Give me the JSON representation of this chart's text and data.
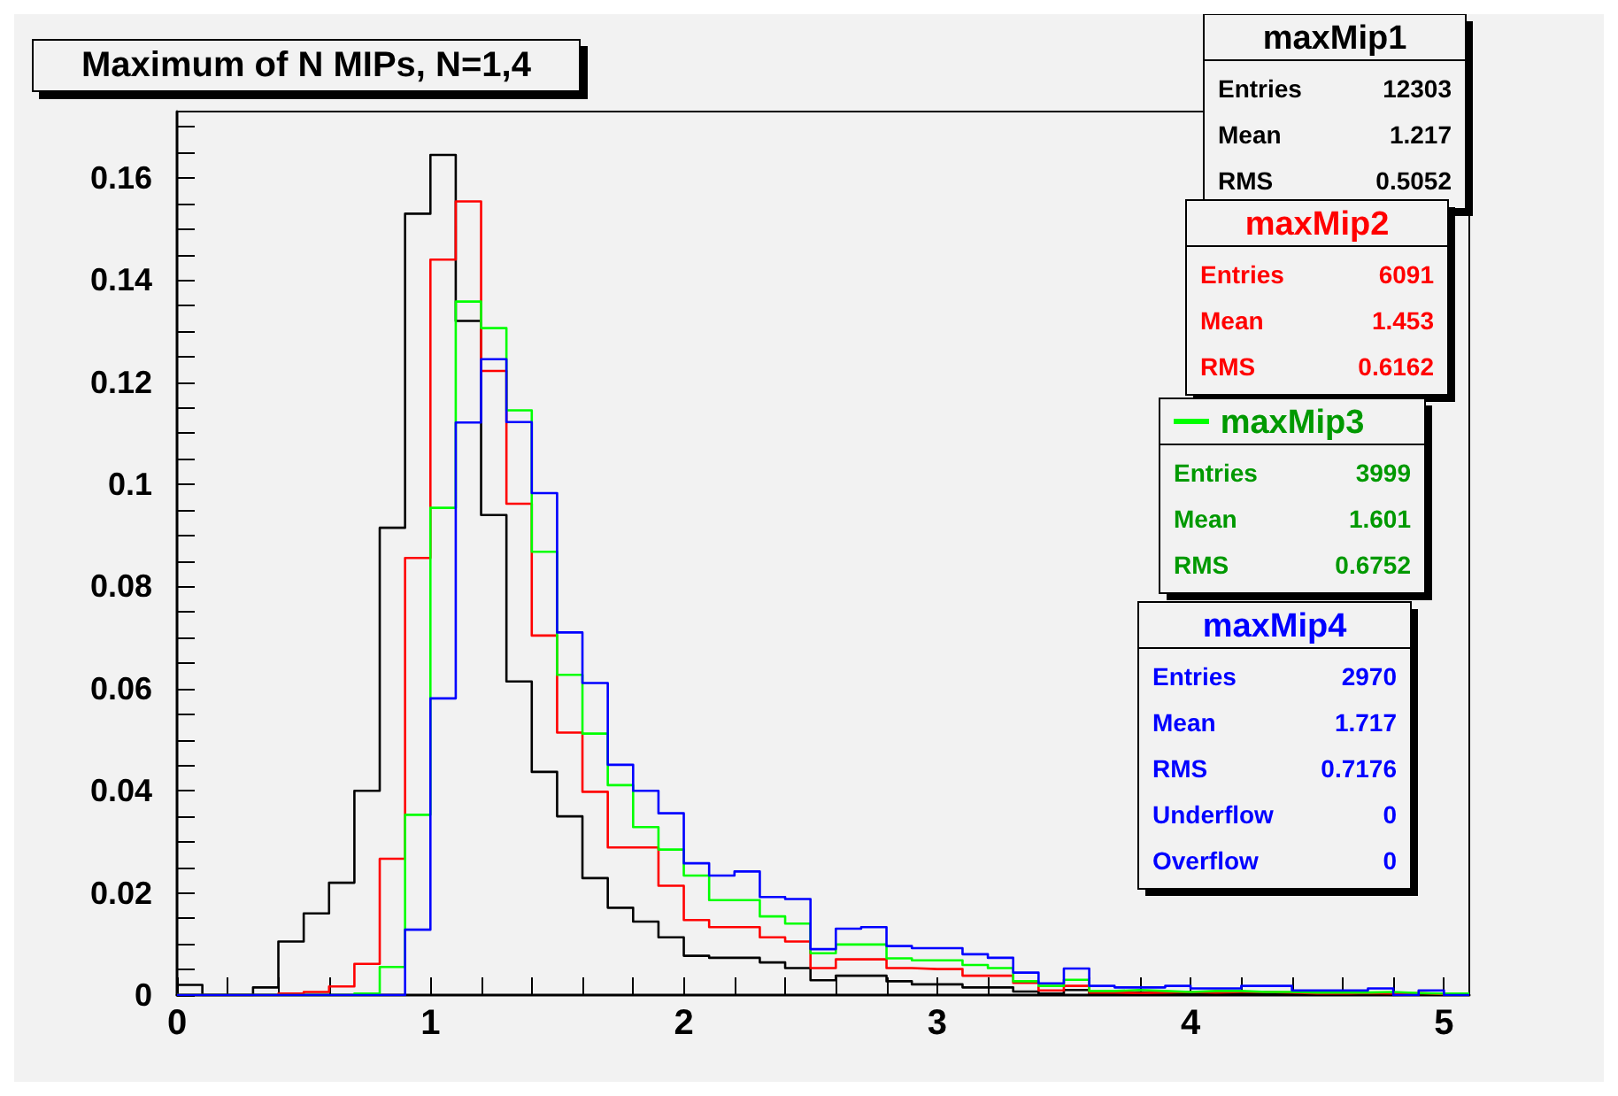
{
  "chart_data": {
    "type": "histogram",
    "title": "Maximum of N MIPs, N=1,4",
    "bins": [
      0,
      0.1,
      0.2,
      0.3,
      0.4,
      0.5,
      0.6,
      0.7,
      0.8,
      0.9,
      1,
      1.1,
      1.2,
      1.3,
      1.4,
      1.5,
      1.6,
      1.7,
      1.8,
      1.9,
      2,
      2.1,
      2.2,
      2.3,
      2.4,
      2.5,
      2.6,
      2.7,
      2.8,
      2.9,
      3,
      3.1,
      3.2,
      3.3,
      3.4,
      3.5,
      3.6,
      3.7,
      3.8,
      3.9,
      4,
      4.1,
      4.2,
      4.3,
      4.4,
      4.5,
      4.6,
      4.7,
      4.8,
      4.9,
      5,
      5.1
    ],
    "series": [
      {
        "name": "maxMip1",
        "color": "#000000",
        "values": [
          0.002,
          0,
          0,
          0.0015,
          0.0105,
          0.016,
          0.022,
          0.04,
          0.0915,
          0.153,
          0.1645,
          0.132,
          0.094,
          0.0614,
          0.0437,
          0.035,
          0.0229,
          0.0171,
          0.0144,
          0.0113,
          0.0077,
          0.0073,
          0.0073,
          0.0064,
          0.0053,
          0.0029,
          0.0038,
          0.0038,
          0.0027,
          0.0021,
          0.0021,
          0.0015,
          0.0015,
          0.0007,
          0.0003,
          0.001,
          0.0003,
          0.0005,
          0.0003,
          0.0003,
          0.0002,
          0.0003,
          0.0002,
          0.0002,
          0.0002,
          0.0001,
          0.0002,
          0,
          0.0001,
          0,
          0
        ]
      },
      {
        "name": "maxMip2",
        "color": "#ff0000",
        "values": [
          0,
          0,
          0,
          0,
          0.0003,
          0.0006,
          0.0017,
          0.0061,
          0.0267,
          0.0856,
          0.144,
          0.1554,
          0.1222,
          0.0962,
          0.0704,
          0.0514,
          0.0398,
          0.0289,
          0.0289,
          0.0214,
          0.0147,
          0.0133,
          0.0133,
          0.0113,
          0.0105,
          0.0053,
          0.007,
          0.007,
          0.0053,
          0.0051,
          0.0051,
          0.0038,
          0.0038,
          0.0024,
          0.0009,
          0.0018,
          0.0005,
          0.0004,
          0.0005,
          0.0006,
          0.0005,
          0.0006,
          0.0006,
          0.0005,
          0.0003,
          0.0003,
          0.0004,
          0.0003,
          0.0004,
          0.0002,
          0.0003
        ]
      },
      {
        "name": "maxMip3",
        "color": "#00ff00",
        "values": [
          0,
          0,
          0,
          0,
          0,
          0,
          0,
          0.0003,
          0.0055,
          0.0353,
          0.0954,
          0.1358,
          0.1306,
          0.1145,
          0.0868,
          0.0627,
          0.0512,
          0.0411,
          0.0329,
          0.0285,
          0.0234,
          0.0186,
          0.0186,
          0.0154,
          0.014,
          0.0082,
          0.0099,
          0.0099,
          0.0072,
          0.0068,
          0.0068,
          0.0059,
          0.0053,
          0.0027,
          0.0018,
          0.003,
          0.0008,
          0.001,
          0.0008,
          0.0006,
          0.0008,
          0.0008,
          0.0006,
          0.0006,
          0.0005,
          0.0005,
          0.0005,
          0.0006,
          0.0004,
          0.0003,
          0.0003
        ]
      },
      {
        "name": "maxMip4",
        "color": "#0000ff",
        "values": [
          0,
          0,
          0,
          0,
          0,
          0,
          0,
          0,
          0,
          0.0128,
          0.0581,
          0.1121,
          0.1245,
          0.1122,
          0.0983,
          0.071,
          0.0611,
          0.0451,
          0.04,
          0.0356,
          0.0258,
          0.0234,
          0.0242,
          0.0192,
          0.0188,
          0.009,
          0.013,
          0.0133,
          0.0096,
          0.0092,
          0.0092,
          0.008,
          0.0073,
          0.0044,
          0.0023,
          0.0052,
          0.0018,
          0.0015,
          0.0015,
          0.0018,
          0.0013,
          0.0013,
          0.0018,
          0.0018,
          0.0009,
          0.0009,
          0.0009,
          0.0013,
          0,
          0.0009,
          0
        ]
      }
    ],
    "annotations": [
      "Entries 12303",
      "Mean 1.217",
      "RMS 0.5052",
      "Entries 6091",
      "Mean 1.453",
      "RMS 0.6162",
      "Entries 3999",
      "Mean 1.601",
      "RMS 0.6752",
      "Entries 2970",
      "Mean 1.717",
      "RMS 0.7176",
      "Underflow 0",
      "Overflow 0"
    ],
    "xlim": [
      0,
      5.1
    ],
    "xticks": [
      0,
      {
        "value": 0.2,
        "label": null
      },
      {
        "value": 0.4,
        "label": null
      },
      {
        "value": 0.6,
        "label": null
      },
      {
        "value": 0.8,
        "label": null
      },
      1,
      {
        "value": 1.2,
        "label": null
      },
      {
        "value": 1.4,
        "label": null
      },
      {
        "value": 1.6,
        "label": null
      },
      {
        "value": 1.8,
        "label": null
      },
      2,
      {
        "value": 2.2,
        "label": null
      },
      {
        "value": 2.4,
        "label": null
      },
      {
        "value": 2.6,
        "label": null
      },
      {
        "value": 2.8,
        "label": null
      },
      3,
      {
        "value": 3.2,
        "label": null
      },
      {
        "value": 3.4,
        "label": null
      },
      {
        "value": 3.6,
        "label": null
      },
      {
        "value": 3.8,
        "label": null
      },
      4,
      {
        "value": 4.2,
        "label": null
      },
      {
        "value": 4.4,
        "label": null
      },
      {
        "value": 4.6,
        "label": null
      },
      {
        "value": 4.8,
        "label": null
      },
      5
    ],
    "ylim": [
      0,
      0.173
    ],
    "yticks": [
      0,
      {
        "value": 0.005,
        "label": null
      },
      {
        "value": 0.01,
        "label": null
      },
      {
        "value": 0.015,
        "label": null
      },
      0.02,
      {
        "value": 0.025,
        "label": null
      },
      {
        "value": 0.03,
        "label": null
      },
      {
        "value": 0.035,
        "label": null
      },
      0.04,
      {
        "value": 0.045,
        "label": null
      },
      {
        "value": 0.05,
        "label": null
      },
      {
        "value": 0.055,
        "label": null
      },
      0.06,
      {
        "value": 0.065,
        "label": null
      },
      {
        "value": 0.07,
        "label": null
      },
      {
        "value": 0.075,
        "label": null
      },
      0.08,
      {
        "value": 0.085,
        "label": null
      },
      {
        "value": 0.09,
        "label": null
      },
      {
        "value": 0.095,
        "label": null
      },
      0.1,
      {
        "value": 0.105,
        "label": null
      },
      {
        "value": 0.11,
        "label": null
      },
      {
        "value": 0.115,
        "label": null
      },
      0.12,
      {
        "value": 0.125,
        "label": null
      },
      {
        "value": 0.13,
        "label": null
      },
      {
        "value": 0.135,
        "label": null
      },
      0.14,
      {
        "value": 0.145,
        "label": null
      },
      {
        "value": 0.15,
        "label": null
      },
      {
        "value": 0.155,
        "label": null
      },
      0.16,
      {
        "value": 0.165,
        "label": null
      },
      {
        "value": 0.17,
        "label": null
      }
    ]
  }
}
